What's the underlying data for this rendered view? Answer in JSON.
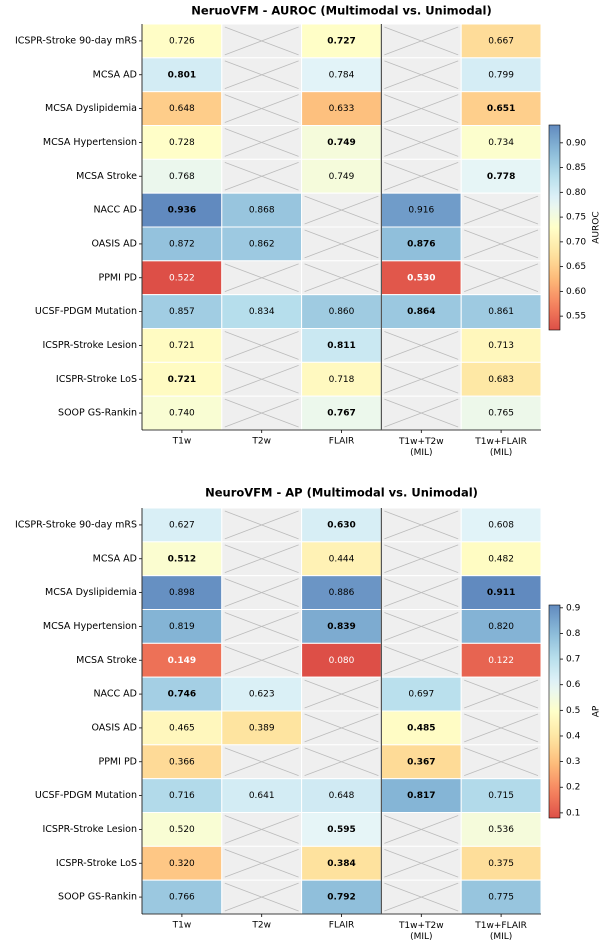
{
  "chart_data": [
    {
      "type": "heatmap",
      "title": "NeruoVFM - AUROC (Multimodal vs. Unimodal)",
      "rows": [
        "ICSPR-Stroke 90-day mRS",
        "MCSA AD",
        "MCSA Dyslipidemia",
        "MCSA Hypertension",
        "MCSA Stroke",
        "NACC AD",
        "OASIS AD",
        "PPMI PD",
        "UCSF-PDGM Mutation",
        "ICSPR-Stroke Lesion",
        "ICSPR-Stroke LoS",
        "SOOP GS-Rankin"
      ],
      "columns": [
        "T1w",
        "T2w",
        "FLAIR",
        "T1w+T2w\n(MIL)",
        "T1w+FLAIR\n(MIL)"
      ],
      "values": [
        [
          0.726,
          null,
          0.727,
          null,
          0.667
        ],
        [
          0.801,
          null,
          0.784,
          null,
          0.799
        ],
        [
          0.648,
          null,
          0.633,
          null,
          0.651
        ],
        [
          0.728,
          null,
          0.749,
          null,
          0.734
        ],
        [
          0.768,
          null,
          0.749,
          null,
          0.778
        ],
        [
          0.936,
          0.868,
          null,
          0.916,
          null
        ],
        [
          0.872,
          0.862,
          null,
          0.876,
          null
        ],
        [
          0.522,
          null,
          null,
          0.53,
          null
        ],
        [
          0.857,
          0.834,
          0.86,
          0.864,
          0.861
        ],
        [
          0.721,
          null,
          0.811,
          null,
          0.713
        ],
        [
          0.721,
          null,
          0.718,
          null,
          0.683
        ],
        [
          0.74,
          null,
          0.767,
          null,
          0.765
        ]
      ],
      "value_labels": [
        [
          "0.726",
          null,
          "0.727",
          null,
          "0.667"
        ],
        [
          "0.801",
          null,
          "0.784",
          null,
          "0.799"
        ],
        [
          "0.648",
          null,
          "0.633",
          null,
          "0.651"
        ],
        [
          "0.728",
          null,
          "0.749",
          null,
          "0.734"
        ],
        [
          "0.768",
          null,
          "0.749",
          null,
          "0.778"
        ],
        [
          "0.936",
          "0.868",
          null,
          "0.916",
          null
        ],
        [
          "0.872",
          "0.862",
          null,
          "0.876",
          null
        ],
        [
          "0.522",
          null,
          null,
          "0.530",
          null
        ],
        [
          "0.857",
          "0.834",
          "0.860",
          "0.864",
          "0.861"
        ],
        [
          "0.721",
          null,
          "0.811",
          null,
          "0.713"
        ],
        [
          "0.721",
          null,
          "0.718",
          null,
          "0.683"
        ],
        [
          "0.740",
          null,
          "0.767",
          null,
          "0.765"
        ]
      ],
      "colormap": "RdYlBu",
      "zlim": [
        0.522,
        0.936
      ],
      "zticks": [
        0.55,
        {
          "value": 0.6,
          "label": "0.60"
        },
        0.65,
        {
          "value": 0.7,
          "label": "0.70"
        },
        0.75,
        {
          "value": 0.8,
          "label": "0.80"
        },
        0.85,
        {
          "value": 0.9,
          "label": "0.90"
        }
      ],
      "colorbar_label": "AUROC"
    },
    {
      "type": "heatmap",
      "title": "NeuroVFM - AP (Multimodal vs. Unimodal)",
      "rows": [
        "ICSPR-Stroke 90-day mRS",
        "MCSA AD",
        "MCSA Dyslipidemia",
        "MCSA Hypertension",
        "MCSA Stroke",
        "NACC AD",
        "OASIS AD",
        "PPMI PD",
        "UCSF-PDGM Mutation",
        "ICSPR-Stroke Lesion",
        "ICSPR-Stroke LoS",
        "SOOP GS-Rankin"
      ],
      "columns": [
        "T1w",
        "T2w",
        "FLAIR",
        "T1w+T2w\n(MIL)",
        "T1w+FLAIR\n(MIL)"
      ],
      "values": [
        [
          0.627,
          null,
          0.63,
          null,
          0.608
        ],
        [
          0.512,
          null,
          0.444,
          null,
          0.482
        ],
        [
          0.898,
          null,
          0.886,
          null,
          0.911
        ],
        [
          0.819,
          null,
          0.839,
          null,
          0.82
        ],
        [
          0.149,
          null,
          0.08,
          null,
          0.122
        ],
        [
          0.746,
          0.623,
          null,
          0.697,
          null
        ],
        [
          0.465,
          0.389,
          null,
          0.485,
          null
        ],
        [
          0.366,
          null,
          null,
          0.367,
          null
        ],
        [
          0.716,
          0.641,
          0.648,
          0.817,
          0.715
        ],
        [
          0.52,
          null,
          0.595,
          null,
          0.536
        ],
        [
          0.32,
          null,
          0.384,
          null,
          0.375
        ],
        [
          0.766,
          null,
          0.792,
          null,
          0.775
        ]
      ],
      "value_labels": [
        [
          "0.627",
          null,
          "0.630",
          null,
          "0.608"
        ],
        [
          "0.512",
          null,
          "0.444",
          null,
          "0.482"
        ],
        [
          "0.898",
          null,
          "0.886",
          null,
          "0.911"
        ],
        [
          "0.819",
          null,
          "0.839",
          null,
          "0.820"
        ],
        [
          "0.149",
          null,
          "0.080",
          null,
          "0.122"
        ],
        [
          "0.746",
          "0.623",
          null,
          "0.697",
          null
        ],
        [
          "0.465",
          "0.389",
          null,
          "0.485",
          null
        ],
        [
          "0.366",
          null,
          null,
          "0.367",
          null
        ],
        [
          "0.716",
          "0.641",
          "0.648",
          "0.817",
          "0.715"
        ],
        [
          "0.520",
          null,
          "0.595",
          null,
          "0.536"
        ],
        [
          "0.320",
          null,
          "0.384",
          null,
          "0.375"
        ],
        [
          "0.766",
          null,
          "0.792",
          null,
          "0.775"
        ]
      ],
      "colormap": "RdYlBu",
      "zlim": [
        0.08,
        0.911
      ],
      "zticks": [
        0.1,
        0.2,
        0.3,
        0.4,
        0.5,
        0.6,
        0.7,
        0.8,
        0.9
      ],
      "colorbar_label": "AP"
    }
  ]
}
